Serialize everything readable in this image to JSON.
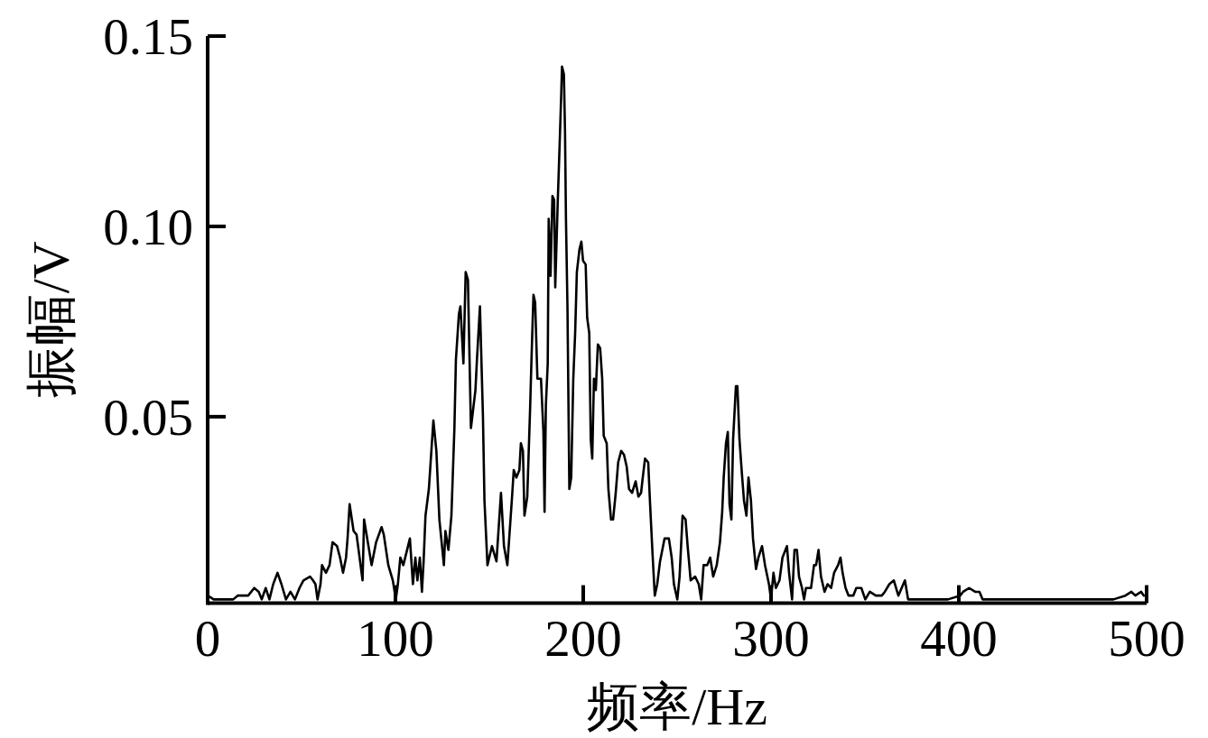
{
  "chart_data": {
    "type": "line",
    "xlabel": "频率/Hz",
    "ylabel": "振幅/V",
    "xlim": [
      0,
      500
    ],
    "xticks": [
      0,
      100,
      200,
      300,
      400,
      500
    ],
    "ylim": [
      0.001,
      0.15
    ],
    "yticks": [
      0.05,
      {
        "value": 0.1,
        "label": "0.10"
      },
      0.15
    ],
    "series": [
      {
        "color": "#000000",
        "x": [
          0,
          3.2,
          8,
          13.6,
          16,
          21.6,
          24.8,
          27.2,
          28.8,
          30.9,
          32.9,
          34.9,
          37.2,
          39.3,
          41.7,
          44.1,
          46.5,
          48.9,
          51,
          54.5,
          56.1,
          57.4,
          58.5,
          60.1,
          60.9,
          63,
          64.9,
          66.5,
          68.9,
          70.5,
          72.1,
          73.7,
          74.5,
          75.6,
          77.7,
          79.3,
          81.7,
          82.5,
          83.3,
          85.3,
          87.3,
          89.7,
          92.6,
          93.8,
          96.2,
          98.6,
          100.2,
          101.3,
          102.6,
          104.2,
          107.7,
          109.3,
          110.6,
          111.7,
          113,
          114.1,
          115,
          116,
          117.8,
          120.2,
          121.8,
          123.4,
          125.8,
          126.6,
          128.2,
          129.8,
          131.4,
          132.2,
          133.8,
          134.6,
          136.2,
          137.4,
          138.6,
          140.2,
          142.6,
          143.4,
          145,
          146.6,
          147.4,
          149,
          151.4,
          153.8,
          156.2,
          157.8,
          159.6,
          162.1,
          163,
          164.4,
          166,
          166.8,
          167.9,
          168.7,
          170.2,
          171.7,
          172.5,
          173.5,
          174.4,
          175.6,
          177.5,
          178.8,
          179.4,
          180.1,
          181.1,
          181.6,
          182.6,
          183.6,
          184.5,
          185.1,
          186.4,
          187.4,
          188.3,
          188.7,
          189.7,
          190.3,
          190.8,
          191.6,
          192.6,
          193.6,
          194.7,
          195.7,
          196.6,
          198,
          199,
          199.9,
          201.3,
          202.1,
          203.2,
          204,
          204.8,
          205.7,
          206.7,
          207.8,
          209,
          210.1,
          210.9,
          212.5,
          213.4,
          214.8,
          215.9,
          217.3,
          218.6,
          220.2,
          221.7,
          223.1,
          224.4,
          226,
          227.9,
          229.4,
          230.8,
          231.7,
          232.9,
          234.6,
          235.6,
          236.9,
          238.1,
          239.4,
          240.9,
          243.3,
          245.6,
          247.1,
          248.3,
          250.1,
          251.3,
          252.9,
          254.5,
          255.6,
          257.2,
          259.6,
          261.5,
          262.8,
          264.1,
          266,
          267.6,
          269.2,
          271.1,
          272.8,
          274,
          274.8,
          276,
          277,
          277.9,
          278.9,
          279.8,
          281.3,
          282.1,
          283.2,
          284.5,
          285.6,
          286.9,
          288,
          289.3,
          290.4,
          292,
          293.3,
          295.2,
          296.8,
          298.9,
          300,
          301.3,
          302.6,
          304.5,
          306.1,
          308.5,
          309.6,
          311.2,
          312.5,
          313.8,
          314.9,
          316.5,
          317.6,
          318.6,
          321.3,
          322.9,
          324,
          325.3,
          326.6,
          328.5,
          330.1,
          332,
          333.6,
          335.7,
          337,
          338.1,
          339.7,
          341.3,
          343.8,
          345.4,
          348.1,
          350.2,
          352.6,
          355.8,
          359,
          360.6,
          363,
          365.4,
          367.8,
          371.3,
          373,
          380,
          386,
          389.7,
          394.2,
          400.7,
          402.3,
          405.5,
          408.7,
          411,
          412.7,
          430,
          450,
          466.3,
          482.3,
          488.7,
          491.9,
          494,
          497.1,
          498.5
        ],
        "values": [
          0.003,
          0.002,
          0.002,
          0.002,
          0.003,
          0.003,
          0.005,
          0.004,
          0.002,
          0.005,
          0.002,
          0.006,
          0.009,
          0.006,
          0.002,
          0.004,
          0.002,
          0.005,
          0.007,
          0.008,
          0.007,
          0.006,
          0.002,
          0.006,
          0.011,
          0.009,
          0.011,
          0.017,
          0.016,
          0.013,
          0.009,
          0.013,
          0.018,
          0.027,
          0.02,
          0.019,
          0.01,
          0.007,
          0.023,
          0.017,
          0.011,
          0.017,
          0.021,
          0.019,
          0.011,
          0.007,
          0.002,
          0.006,
          0.013,
          0.011,
          0.018,
          0.006,
          0.013,
          0.007,
          0.013,
          0.004,
          0.012,
          0.024,
          0.031,
          0.049,
          0.041,
          0.023,
          0.011,
          0.02,
          0.015,
          0.024,
          0.047,
          0.065,
          0.077,
          0.079,
          0.064,
          0.088,
          0.086,
          0.047,
          0.057,
          0.065,
          0.079,
          0.05,
          0.028,
          0.011,
          0.016,
          0.012,
          0.03,
          0.016,
          0.011,
          0.029,
          0.036,
          0.034,
          0.036,
          0.043,
          0.041,
          0.024,
          0.029,
          0.052,
          0.066,
          0.082,
          0.08,
          0.06,
          0.06,
          0.046,
          0.025,
          0.053,
          0.064,
          0.102,
          0.087,
          0.108,
          0.107,
          0.084,
          0.106,
          0.121,
          0.135,
          0.142,
          0.14,
          0.125,
          0.102,
          0.079,
          0.031,
          0.034,
          0.06,
          0.072,
          0.088,
          0.094,
          0.096,
          0.091,
          0.09,
          0.076,
          0.072,
          0.044,
          0.039,
          0.06,
          0.057,
          0.069,
          0.068,
          0.06,
          0.045,
          0.043,
          0.031,
          0.023,
          0.023,
          0.03,
          0.038,
          0.041,
          0.04,
          0.037,
          0.031,
          0.03,
          0.033,
          0.029,
          0.03,
          0.034,
          0.039,
          0.038,
          0.027,
          0.014,
          0.003,
          0.006,
          0.012,
          0.018,
          0.018,
          0.013,
          0.006,
          0.002,
          0.008,
          0.024,
          0.023,
          0.016,
          0.007,
          0.008,
          0.006,
          0.002,
          0.011,
          0.011,
          0.013,
          0.008,
          0.011,
          0.017,
          0.025,
          0.034,
          0.043,
          0.046,
          0.027,
          0.023,
          0.044,
          0.058,
          0.058,
          0.044,
          0.035,
          0.028,
          0.024,
          0.034,
          0.028,
          0.018,
          0.01,
          0.013,
          0.016,
          0.011,
          0.006,
          0.002,
          0.009,
          0.005,
          0.007,
          0.013,
          0.016,
          0.009,
          0.002,
          0.015,
          0.015,
          0.008,
          0.005,
          0.002,
          0.005,
          0.005,
          0.011,
          0.011,
          0.015,
          0.008,
          0.004,
          0.006,
          0.005,
          0.009,
          0.011,
          0.013,
          0.009,
          0.005,
          0.003,
          0.003,
          0.005,
          0.005,
          0.002,
          0.004,
          0.003,
          0.003,
          0.004,
          0.006,
          0.007,
          0.003,
          0.007,
          0.002,
          0.002,
          0.002,
          0.002,
          0.002,
          0.003,
          0.004,
          0.005,
          0.004,
          0.004,
          0.002,
          0.002,
          0.002,
          0.002,
          0.002,
          0.003,
          0.004,
          0.003,
          0.004,
          0.003
        ]
      }
    ]
  }
}
